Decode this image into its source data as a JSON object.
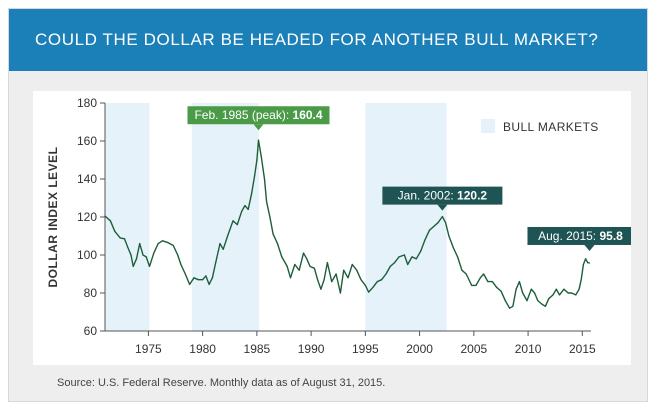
{
  "title": "COULD THE DOLLAR BE HEADED FOR ANOTHER BULL MARKET?",
  "source": "Source: U.S. Federal Reserve. Monthly data as of August 31, 2015.",
  "colors": {
    "banner": "#1b7fb8",
    "line": "#1d5e3a",
    "bull_shade": "#e6f2fa",
    "annotation_green": "#4a9a48",
    "annotation_dark": "#1f5454"
  },
  "chart_data": {
    "type": "line",
    "ylabel": "DOLLAR INDEX LEVEL",
    "xlabel": "",
    "ylim": [
      60,
      180
    ],
    "xlim": [
      1971,
      2015.8
    ],
    "y_ticks": [
      "60",
      "80",
      "100",
      "120",
      "140",
      "160",
      "180"
    ],
    "x_ticks": [
      "1975",
      "1980",
      "1985",
      "1990",
      "1995",
      "2000",
      "2005",
      "2010",
      "2015"
    ],
    "grid": false,
    "legend": {
      "label": "BULL MARKETS",
      "position": "top-right"
    },
    "bull_markets": [
      {
        "start": 1971.0,
        "end": 1975.1
      },
      {
        "start": 1979.0,
        "end": 1985.2
      },
      {
        "start": 1995.0,
        "end": 2002.5
      }
    ],
    "series": [
      {
        "points": [
          [
            1971.0,
            120.5
          ],
          [
            1971.5,
            118.0
          ],
          [
            1971.9,
            112.5
          ],
          [
            1972.4,
            109.0
          ],
          [
            1972.8,
            108.5
          ],
          [
            1973.1,
            104.0
          ],
          [
            1973.4,
            100.0
          ],
          [
            1973.6,
            94.0
          ],
          [
            1973.9,
            98.0
          ],
          [
            1974.2,
            106.0
          ],
          [
            1974.5,
            100.0
          ],
          [
            1974.8,
            99.0
          ],
          [
            1975.1,
            94.0
          ],
          [
            1975.5,
            101.0
          ],
          [
            1975.9,
            106.0
          ],
          [
            1976.3,
            107.5
          ],
          [
            1976.8,
            106.5
          ],
          [
            1977.3,
            105.0
          ],
          [
            1977.7,
            100.0
          ],
          [
            1978.0,
            95.0
          ],
          [
            1978.4,
            90.0
          ],
          [
            1978.8,
            84.5
          ],
          [
            1979.2,
            88.0
          ],
          [
            1979.6,
            87.0
          ],
          [
            1980.0,
            87.0
          ],
          [
            1980.3,
            89.0
          ],
          [
            1980.6,
            84.5
          ],
          [
            1980.9,
            88.0
          ],
          [
            1981.2,
            96.0
          ],
          [
            1981.6,
            106.0
          ],
          [
            1981.9,
            103.0
          ],
          [
            1982.3,
            110.0
          ],
          [
            1982.8,
            118.0
          ],
          [
            1983.2,
            116.0
          ],
          [
            1983.6,
            123.0
          ],
          [
            1983.9,
            126.0
          ],
          [
            1984.2,
            124.0
          ],
          [
            1984.5,
            132.0
          ],
          [
            1984.8,
            142.0
          ],
          [
            1985.0,
            150.0
          ],
          [
            1985.15,
            160.4
          ],
          [
            1985.4,
            152.0
          ],
          [
            1985.7,
            140.0
          ],
          [
            1985.9,
            128.0
          ],
          [
            1986.2,
            120.0
          ],
          [
            1986.5,
            111.0
          ],
          [
            1986.9,
            106.0
          ],
          [
            1987.3,
            99.0
          ],
          [
            1987.8,
            94.0
          ],
          [
            1988.1,
            88.0
          ],
          [
            1988.5,
            95.0
          ],
          [
            1988.9,
            92.0
          ],
          [
            1989.3,
            101.0
          ],
          [
            1989.6,
            98.0
          ],
          [
            1989.9,
            94.0
          ],
          [
            1990.3,
            93.0
          ],
          [
            1990.6,
            87.0
          ],
          [
            1990.9,
            82.0
          ],
          [
            1991.2,
            87.0
          ],
          [
            1991.5,
            96.0
          ],
          [
            1991.9,
            86.0
          ],
          [
            1992.3,
            90.0
          ],
          [
            1992.7,
            80.0
          ],
          [
            1993.0,
            92.0
          ],
          [
            1993.4,
            88.0
          ],
          [
            1993.8,
            95.0
          ],
          [
            1994.2,
            92.0
          ],
          [
            1994.6,
            87.0
          ],
          [
            1995.0,
            84.0
          ],
          [
            1995.3,
            80.5
          ],
          [
            1995.7,
            83.0
          ],
          [
            1996.1,
            86.0
          ],
          [
            1996.5,
            87.0
          ],
          [
            1996.9,
            90.0
          ],
          [
            1997.3,
            94.0
          ],
          [
            1997.7,
            96.0
          ],
          [
            1998.1,
            99.0
          ],
          [
            1998.6,
            100.0
          ],
          [
            1998.9,
            95.0
          ],
          [
            1999.3,
            99.0
          ],
          [
            1999.7,
            98.0
          ],
          [
            2000.1,
            102.0
          ],
          [
            2000.5,
            108.0
          ],
          [
            2000.9,
            113.0
          ],
          [
            2001.3,
            115.0
          ],
          [
            2001.7,
            117.0
          ],
          [
            2002.1,
            120.2
          ],
          [
            2002.4,
            117.0
          ],
          [
            2002.7,
            110.0
          ],
          [
            2003.1,
            104.0
          ],
          [
            2003.5,
            99.0
          ],
          [
            2003.9,
            92.0
          ],
          [
            2004.3,
            90.0
          ],
          [
            2004.8,
            84.0
          ],
          [
            2005.2,
            84.0
          ],
          [
            2005.6,
            88.0
          ],
          [
            2005.9,
            90.0
          ],
          [
            2006.3,
            86.0
          ],
          [
            2006.7,
            86.0
          ],
          [
            2007.1,
            83.0
          ],
          [
            2007.5,
            81.0
          ],
          [
            2007.9,
            76.0
          ],
          [
            2008.3,
            72.0
          ],
          [
            2008.6,
            73.0
          ],
          [
            2008.9,
            82.0
          ],
          [
            2009.2,
            86.0
          ],
          [
            2009.5,
            80.0
          ],
          [
            2009.9,
            76.0
          ],
          [
            2010.3,
            82.0
          ],
          [
            2010.6,
            80.0
          ],
          [
            2010.9,
            76.0
          ],
          [
            2011.3,
            74.0
          ],
          [
            2011.6,
            73.0
          ],
          [
            2011.9,
            77.0
          ],
          [
            2012.3,
            79.0
          ],
          [
            2012.6,
            82.0
          ],
          [
            2012.9,
            79.0
          ],
          [
            2013.3,
            82.0
          ],
          [
            2013.7,
            80.0
          ],
          [
            2014.0,
            80.0
          ],
          [
            2014.4,
            79.0
          ],
          [
            2014.7,
            82.0
          ],
          [
            2014.9,
            87.0
          ],
          [
            2015.1,
            95.0
          ],
          [
            2015.3,
            98.0
          ],
          [
            2015.5,
            96.0
          ],
          [
            2015.66,
            95.8
          ]
        ]
      }
    ],
    "annotations": [
      {
        "text": "Feb. 1985 (peak): ",
        "value": "160.4",
        "x": 1985.15,
        "y": 160.4,
        "color": "green"
      },
      {
        "text": "Jan. 2002: ",
        "value": "120.2",
        "x": 2002.1,
        "y": 120.2,
        "color": "dark"
      },
      {
        "text": "Aug. 2015: ",
        "value": "95.8",
        "x": 2015.66,
        "y": 95.8,
        "color": "dark"
      }
    ]
  }
}
